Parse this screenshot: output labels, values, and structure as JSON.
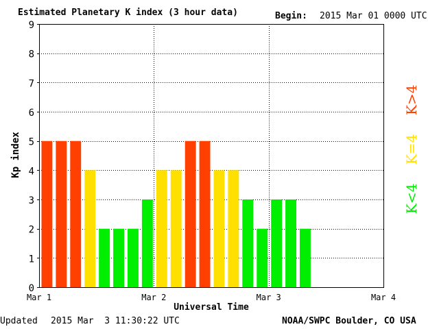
{
  "header": {
    "title": "Estimated Planetary K index (3 hour data)",
    "begin_label": "Begin:",
    "begin_value": "2015 Mar 01 0000 UTC"
  },
  "footer": {
    "updated_label": "Updated",
    "updated_value": "2015 Mar  3 11:30:22 UTC",
    "source": "NOAA/SWPC Boulder, CO USA"
  },
  "legend": {
    "high_label": "K>4",
    "mid_label": "K=4",
    "low_label": "K<4"
  },
  "colors": {
    "high": "#ff4000",
    "mid": "#ffe000",
    "low": "#00ee00",
    "grid": "#000000"
  },
  "chart_data": {
    "type": "bar",
    "title": "Estimated Planetary K index (3 hour data)",
    "xlabel": "Universal Time",
    "ylabel": "Kp index",
    "ylim": [
      0,
      9
    ],
    "yticks": [
      0,
      1,
      2,
      3,
      4,
      5,
      6,
      7,
      8,
      9
    ],
    "xticks": [
      "Mar 1",
      "Mar 2",
      "Mar 3",
      "Mar 4"
    ],
    "interval_hours": 3,
    "grid": "dotted",
    "values": [
      5,
      5,
      5,
      4,
      2,
      2,
      2,
      3,
      4,
      4,
      5,
      5,
      4,
      4,
      3,
      2,
      3,
      3,
      2
    ]
  }
}
